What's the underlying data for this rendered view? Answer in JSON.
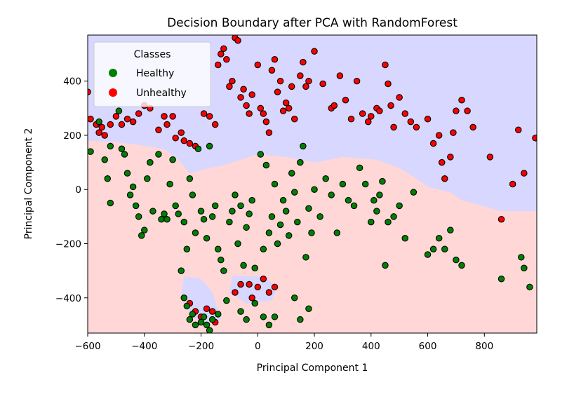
{
  "chart_data": {
    "type": "scatter",
    "title": "Decision Boundary after PCA with RandomForest",
    "xlabel": "Principal Component 1",
    "ylabel": "Principal Component 2",
    "xlim": [
      -600,
      985
    ],
    "ylim": [
      -530,
      570
    ],
    "xticks": [
      -600,
      -400,
      -200,
      0,
      200,
      400,
      600,
      800
    ],
    "xtick_labels": [
      "−600",
      "−400",
      "−200",
      "0",
      "200",
      "400",
      "600",
      "800"
    ],
    "yticks": [
      -400,
      -200,
      0,
      200,
      400
    ],
    "ytick_labels": [
      "−400",
      "−200",
      "0",
      "200",
      "400"
    ],
    "grid": false,
    "legend": {
      "title": "Classes",
      "placement": "top-left",
      "entries": [
        {
          "label": "Healthy",
          "color": "#008000"
        },
        {
          "label": "Unhealthy",
          "color": "#ff0000"
        }
      ]
    },
    "regions": {
      "unhealthy_color": "#d7d7ff",
      "healthy_color": "#ffd7d7",
      "boundary": [
        [
          -600,
          180
        ],
        [
          -500,
          175
        ],
        [
          -420,
          165
        ],
        [
          -330,
          150
        ],
        [
          -280,
          110
        ],
        [
          -240,
          60
        ],
        [
          -170,
          80
        ],
        [
          -120,
          90
        ],
        [
          -60,
          110
        ],
        [
          0,
          130
        ],
        [
          100,
          120
        ],
        [
          200,
          100
        ],
        [
          300,
          120
        ],
        [
          420,
          110
        ],
        [
          500,
          80
        ],
        [
          560,
          40
        ],
        [
          600,
          10
        ],
        [
          680,
          -10
        ],
        [
          720,
          -40
        ],
        [
          790,
          -60
        ],
        [
          860,
          -80
        ],
        [
          985,
          -80
        ]
      ],
      "pockets": [
        [
          [
            -260,
            -320
          ],
          [
            -200,
            -330
          ],
          [
            -160,
            -380
          ],
          [
            -130,
            -480
          ],
          [
            -190,
            -500
          ],
          [
            -240,
            -460
          ],
          [
            -270,
            -390
          ]
        ],
        [
          [
            -90,
            -320
          ],
          [
            20,
            -320
          ],
          [
            70,
            -360
          ],
          [
            50,
            -410
          ],
          [
            -40,
            -420
          ],
          [
            -100,
            -380
          ]
        ]
      ]
    },
    "series": [
      {
        "name": "Unhealthy",
        "color": "#ff0000",
        "points": [
          [
            -600,
            360
          ],
          [
            -590,
            260
          ],
          [
            -570,
            240
          ],
          [
            -560,
            210
          ],
          [
            -550,
            230
          ],
          [
            -540,
            200
          ],
          [
            -520,
            240
          ],
          [
            -500,
            270
          ],
          [
            -480,
            240
          ],
          [
            -460,
            260
          ],
          [
            -440,
            250
          ],
          [
            -420,
            280
          ],
          [
            -400,
            310
          ],
          [
            -380,
            300
          ],
          [
            -350,
            220
          ],
          [
            -330,
            270
          ],
          [
            -320,
            240
          ],
          [
            -300,
            270
          ],
          [
            -290,
            190
          ],
          [
            -270,
            210
          ],
          [
            -260,
            180
          ],
          [
            -240,
            170
          ],
          [
            -220,
            160
          ],
          [
            -190,
            280
          ],
          [
            -170,
            270
          ],
          [
            -150,
            240
          ],
          [
            -140,
            460
          ],
          [
            -130,
            500
          ],
          [
            -120,
            520
          ],
          [
            -110,
            480
          ],
          [
            -100,
            380
          ],
          [
            -90,
            400
          ],
          [
            -80,
            560
          ],
          [
            -70,
            550
          ],
          [
            -60,
            340
          ],
          [
            -50,
            370
          ],
          [
            -40,
            310
          ],
          [
            -30,
            280
          ],
          [
            -20,
            350
          ],
          [
            0,
            460
          ],
          [
            10,
            300
          ],
          [
            20,
            280
          ],
          [
            30,
            250
          ],
          [
            40,
            210
          ],
          [
            50,
            440
          ],
          [
            60,
            480
          ],
          [
            70,
            360
          ],
          [
            80,
            400
          ],
          [
            90,
            290
          ],
          [
            100,
            320
          ],
          [
            110,
            300
          ],
          [
            120,
            380
          ],
          [
            130,
            260
          ],
          [
            150,
            420
          ],
          [
            160,
            470
          ],
          [
            170,
            380
          ],
          [
            180,
            400
          ],
          [
            200,
            510
          ],
          [
            230,
            390
          ],
          [
            260,
            300
          ],
          [
            270,
            310
          ],
          [
            290,
            420
          ],
          [
            310,
            330
          ],
          [
            330,
            260
          ],
          [
            350,
            400
          ],
          [
            370,
            280
          ],
          [
            390,
            250
          ],
          [
            400,
            270
          ],
          [
            420,
            300
          ],
          [
            430,
            290
          ],
          [
            450,
            460
          ],
          [
            460,
            390
          ],
          [
            470,
            310
          ],
          [
            480,
            230
          ],
          [
            500,
            340
          ],
          [
            520,
            280
          ],
          [
            540,
            250
          ],
          [
            560,
            230
          ],
          [
            600,
            260
          ],
          [
            620,
            170
          ],
          [
            640,
            200
          ],
          [
            650,
            100
          ],
          [
            660,
            40
          ],
          [
            680,
            120
          ],
          [
            690,
            210
          ],
          [
            700,
            290
          ],
          [
            720,
            330
          ],
          [
            740,
            290
          ],
          [
            760,
            230
          ],
          [
            820,
            120
          ],
          [
            860,
            -110
          ],
          [
            900,
            20
          ],
          [
            920,
            220
          ],
          [
            940,
            60
          ],
          [
            980,
            190
          ],
          [
            -240,
            -420
          ],
          [
            -220,
            -450
          ],
          [
            -200,
            -470
          ],
          [
            -180,
            -440
          ],
          [
            -160,
            -450
          ],
          [
            -150,
            -490
          ],
          [
            -80,
            -380
          ],
          [
            -60,
            -350
          ],
          [
            -30,
            -350
          ],
          [
            -20,
            -400
          ],
          [
            0,
            -360
          ],
          [
            20,
            -330
          ],
          [
            40,
            -380
          ],
          [
            60,
            -360
          ]
        ]
      },
      {
        "name": "Healthy",
        "color": "#008000",
        "points": [
          [
            -590,
            140
          ],
          [
            -560,
            250
          ],
          [
            -540,
            110
          ],
          [
            -520,
            160
          ],
          [
            -530,
            40
          ],
          [
            -520,
            -50
          ],
          [
            -490,
            290
          ],
          [
            -480,
            150
          ],
          [
            -470,
            130
          ],
          [
            -460,
            60
          ],
          [
            -450,
            -20
          ],
          [
            -440,
            10
          ],
          [
            -430,
            -60
          ],
          [
            -420,
            -100
          ],
          [
            -410,
            -170
          ],
          [
            -400,
            -150
          ],
          [
            -390,
            40
          ],
          [
            -380,
            100
          ],
          [
            -370,
            -80
          ],
          [
            -350,
            130
          ],
          [
            -340,
            -110
          ],
          [
            -330,
            -90
          ],
          [
            -320,
            -110
          ],
          [
            -310,
            20
          ],
          [
            -300,
            110
          ],
          [
            -290,
            -60
          ],
          [
            -280,
            -90
          ],
          [
            -270,
            -300
          ],
          [
            -260,
            -120
          ],
          [
            -250,
            -220
          ],
          [
            -240,
            40
          ],
          [
            -230,
            -20
          ],
          [
            -220,
            -160
          ],
          [
            -210,
            150
          ],
          [
            -200,
            -80
          ],
          [
            -190,
            -110
          ],
          [
            -180,
            -180
          ],
          [
            -170,
            160
          ],
          [
            -160,
            -100
          ],
          [
            -150,
            -60
          ],
          [
            -140,
            -220
          ],
          [
            -130,
            -260
          ],
          [
            -120,
            -300
          ],
          [
            -110,
            -410
          ],
          [
            -100,
            -120
          ],
          [
            -90,
            -80
          ],
          [
            -80,
            -20
          ],
          [
            -70,
            -200
          ],
          [
            -60,
            -60
          ],
          [
            -50,
            -280
          ],
          [
            -40,
            -140
          ],
          [
            -30,
            -90
          ],
          [
            -20,
            -40
          ],
          [
            -10,
            -290
          ],
          [
            10,
            130
          ],
          [
            20,
            -220
          ],
          [
            30,
            90
          ],
          [
            40,
            -160
          ],
          [
            50,
            -100
          ],
          [
            60,
            20
          ],
          [
            70,
            -200
          ],
          [
            80,
            -130
          ],
          [
            90,
            -40
          ],
          [
            100,
            -80
          ],
          [
            110,
            -170
          ],
          [
            120,
            60
          ],
          [
            130,
            -10
          ],
          [
            140,
            -120
          ],
          [
            150,
            100
          ],
          [
            160,
            160
          ],
          [
            170,
            -250
          ],
          [
            180,
            -70
          ],
          [
            190,
            -160
          ],
          [
            200,
            0
          ],
          [
            220,
            -100
          ],
          [
            240,
            40
          ],
          [
            260,
            -20
          ],
          [
            280,
            -160
          ],
          [
            300,
            20
          ],
          [
            320,
            -40
          ],
          [
            340,
            -60
          ],
          [
            360,
            80
          ],
          [
            380,
            20
          ],
          [
            400,
            -120
          ],
          [
            410,
            -40
          ],
          [
            420,
            -80
          ],
          [
            430,
            -20
          ],
          [
            440,
            30
          ],
          [
            450,
            -280
          ],
          [
            460,
            -120
          ],
          [
            480,
            -100
          ],
          [
            500,
            -60
          ],
          [
            520,
            -180
          ],
          [
            550,
            -10
          ],
          [
            600,
            -240
          ],
          [
            620,
            -220
          ],
          [
            640,
            -180
          ],
          [
            660,
            -220
          ],
          [
            680,
            -150
          ],
          [
            700,
            -260
          ],
          [
            720,
            -280
          ],
          [
            860,
            -330
          ],
          [
            930,
            -250
          ],
          [
            940,
            -290
          ],
          [
            960,
            -360
          ],
          [
            -260,
            -400
          ],
          [
            -250,
            -430
          ],
          [
            -240,
            -480
          ],
          [
            -230,
            -460
          ],
          [
            -220,
            -500
          ],
          [
            -200,
            -490
          ],
          [
            -190,
            -470
          ],
          [
            -180,
            -500
          ],
          [
            -170,
            -520
          ],
          [
            -160,
            -480
          ],
          [
            -140,
            -460
          ],
          [
            -60,
            -450
          ],
          [
            -40,
            -480
          ],
          [
            -10,
            -420
          ],
          [
            20,
            -470
          ],
          [
            40,
            -500
          ],
          [
            60,
            -470
          ],
          [
            130,
            -400
          ],
          [
            150,
            -480
          ],
          [
            180,
            -440
          ]
        ]
      }
    ]
  }
}
